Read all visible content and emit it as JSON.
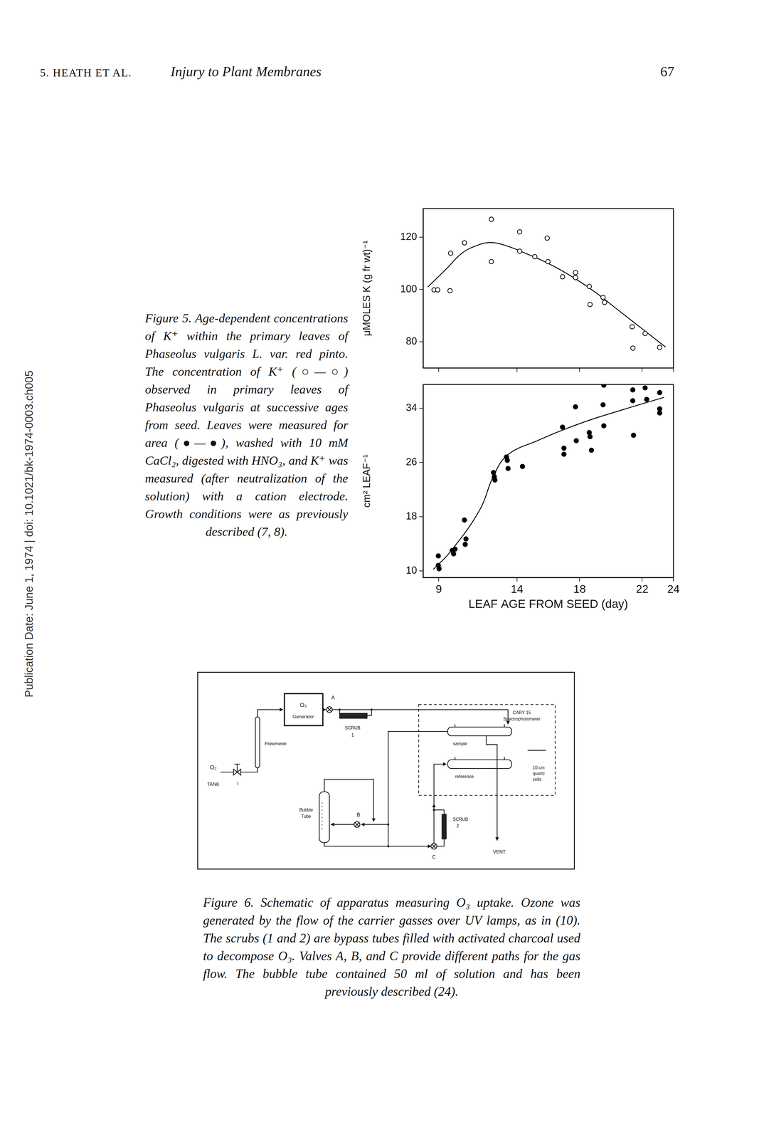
{
  "header": {
    "left": "5. HEATH ET AL.",
    "title": "Injury to Plant Membranes",
    "page": "67"
  },
  "side_note": "Publication Date: June 1, 1974 | doi: 10.1021/bk-1974-0003.ch005",
  "figure5": {
    "caption": "Figure 5. Age-dependent concentrations of K⁺ within the primary leaves of Phaseolus vulgaris L. var. red pinto. The concentration of K⁺ (○—○) observed in primary leaves of Phaseolus vulgaris at successive ages from seed. Leaves were measured for area (●—●), washed with 10 mM CaCl₂, digested with HNO₃, and K⁺ was measured (after neutralization of the solution) with a cation electrode. Growth conditions were as previously described (7, 8)."
  },
  "chart_data": [
    {
      "type": "scatter",
      "ylabel": "μMOLES K (g fr wt)⁻¹",
      "xlim": [
        8,
        24
      ],
      "xticks": [
        9,
        14,
        18,
        22,
        24
      ],
      "ylim": [
        70,
        131
      ],
      "yticks": [
        80,
        100,
        120
      ],
      "tick_labels": "y",
      "grid": false,
      "series": [
        {
          "type": "scatter",
          "marker": "open circle",
          "color": "#000000",
          "x": [
            8.7,
            8.93,
            9.72,
            9.76,
            10.64,
            12.36,
            12.36,
            14.17,
            14.17,
            15.14,
            15.93,
            15.98,
            16.91,
            17.74,
            17.74,
            18.62,
            18.67,
            19.5,
            19.6,
            21.36,
            21.41,
            22.19,
            23.12
          ],
          "values": [
            99.9,
            99.9,
            99.6,
            113.9,
            117.9,
            126.9,
            110.7,
            122.1,
            114.7,
            112.6,
            119.7,
            110.7,
            104.9,
            106.5,
            104.6,
            101.2,
            94.3,
            97.0,
            95.1,
            85.8,
            77.6,
            83.2,
            77.9
          ]
        },
        {
          "type": "line",
          "line_style": "solid",
          "color": "#000000",
          "x": [
            8.3,
            9.5,
            10.5,
            11.5,
            12.3,
            13.2,
            14.5,
            16,
            17.5,
            19,
            20.5,
            22,
            23.5
          ],
          "values": [
            101,
            108,
            114,
            117,
            118,
            117,
            114,
            110,
            105,
            99,
            92,
            85,
            78
          ]
        }
      ]
    },
    {
      "type": "scatter",
      "xlabel": "LEAF AGE FROM SEED (day)",
      "ylabel": "cm² LEAF⁻¹",
      "xlim": [
        8,
        24
      ],
      "xticks": [
        9,
        14,
        18,
        22,
        24
      ],
      "ylim": [
        9,
        37.5
      ],
      "yticks": [
        10,
        18,
        26,
        34
      ],
      "grid": false,
      "series": [
        {
          "type": "scatter",
          "marker": "filled circle",
          "color": "#000000",
          "x": [
            8.97,
            8.97,
            9.02,
            9.86,
            9.95,
            10.04,
            10.69,
            10.74,
            10.64,
            12.5,
            12.55,
            12.59,
            13.33,
            13.38,
            13.43,
            14.35,
            16.91,
            17.0,
            17.0,
            17.79,
            18.62,
            18.67,
            18.76,
            19.55,
            17.74,
            19.5,
            19.55,
            21.4,
            21.4,
            22.19,
            22.29,
            23.12,
            23.12,
            23.12,
            21.45
          ],
          "values": [
            12.2,
            10.8,
            10.3,
            13.0,
            12.5,
            13.2,
            13.9,
            14.7,
            17.5,
            24.5,
            23.9,
            23.4,
            26.8,
            26.3,
            25.1,
            25.4,
            31.2,
            28.1,
            27.2,
            29.2,
            30.4,
            29.8,
            27.8,
            31.4,
            34.2,
            34.5,
            37.4,
            36.7,
            35.1,
            37.0,
            35.3,
            36.3,
            33.9,
            33.3,
            30.0
          ]
        },
        {
          "type": "line",
          "line_style": "solid",
          "color": "#000000",
          "x": [
            8.65,
            9.7,
            11.6,
            12.5,
            13.4,
            15.3,
            18.1,
            20.8,
            23.4
          ],
          "values": [
            10.2,
            12.7,
            18.9,
            24.0,
            27.1,
            29.2,
            31.8,
            33.8,
            35.6
          ]
        }
      ]
    }
  ],
  "figure6": {
    "labels": {
      "tank": [
        "O₂",
        "TANK"
      ],
      "valve_i": "I",
      "flowmeter": "Flowmeter",
      "generator": [
        "O₃",
        "Generator"
      ],
      "valve_a": "A",
      "scrub1": [
        "SCRUB",
        "1"
      ],
      "spectrophotometer": [
        "CARY 15",
        "Spectrophotometer"
      ],
      "sample": "sample",
      "reference": "reference",
      "cells": [
        "10 cm",
        "quartz",
        "cells"
      ],
      "bubble_tube": [
        "Bubble",
        "Tube"
      ],
      "valve_b": "B",
      "valve_c": "C",
      "scrub2": [
        "SCRUB",
        "2"
      ],
      "vent": "VENT"
    },
    "caption": "Figure 6. Schematic of apparatus measuring O₃ uptake. Ozone was generated by the flow of the carrier gasses over UV lamps, as in (10). The scrubs (1 and 2) are bypass tubes filled with activated charcoal used to decompose O₃. Valves A, B, and C provide different paths for the gas flow. The bubble tube contained 50 ml of solution and has been previously described (24)."
  }
}
